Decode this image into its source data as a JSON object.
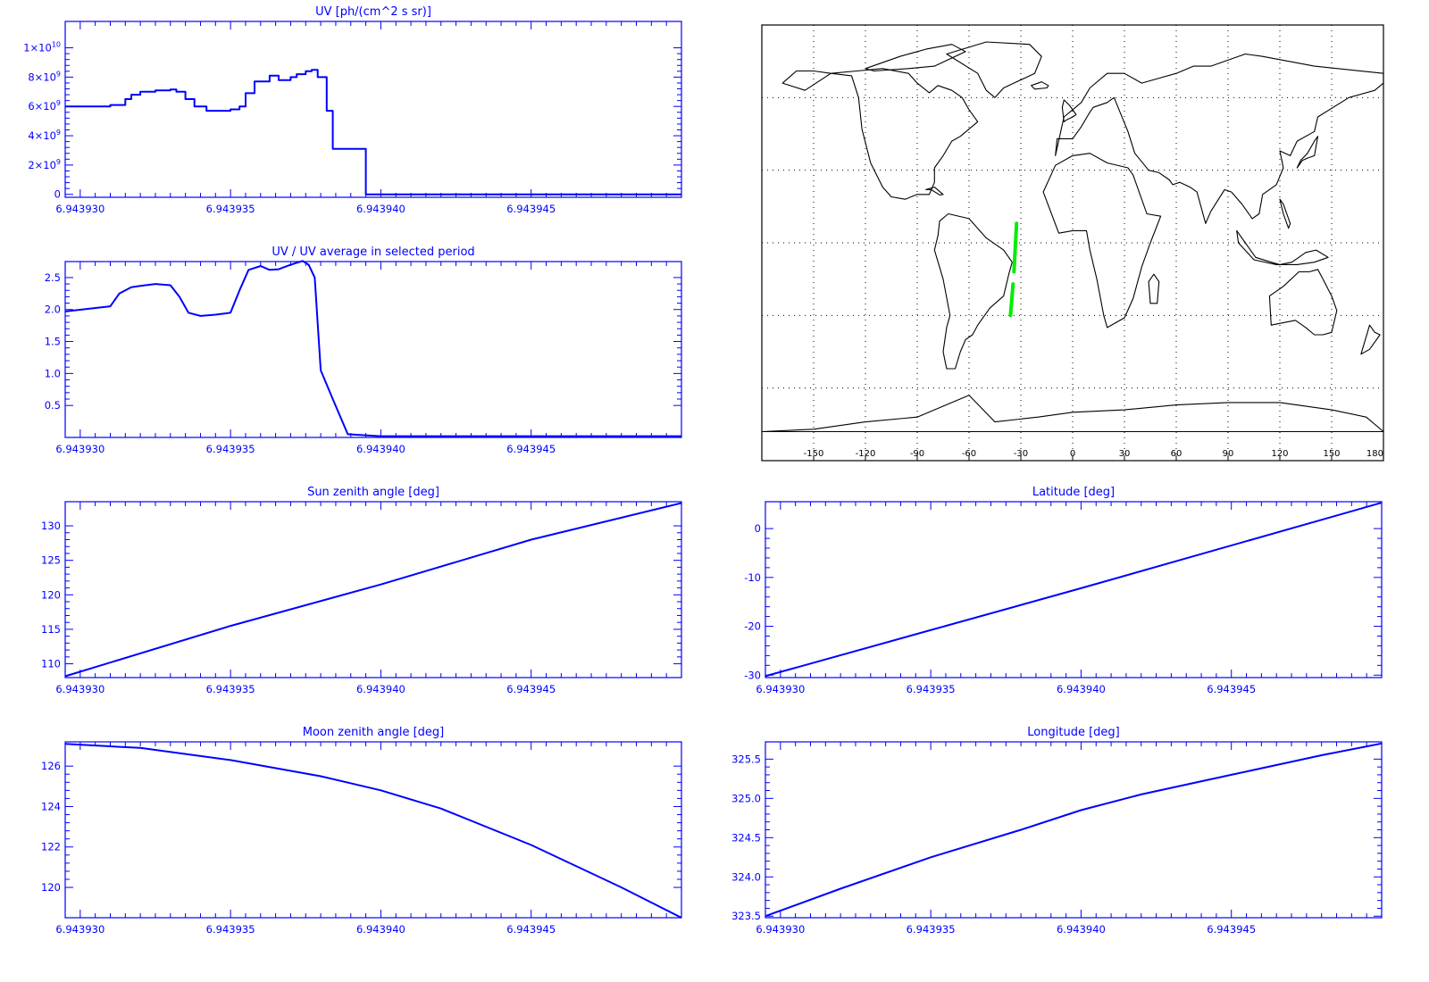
{
  "colors": {
    "plot": "#0000ff",
    "track": "#00ee00",
    "map_line": "#000000",
    "grid": "#000000"
  },
  "chart_data": [
    {
      "id": "uv",
      "type": "line",
      "step": true,
      "title": "UV [ph/(cm^2 s sr)]",
      "xlim": [
        6.9439295,
        6.94395
      ],
      "ylim": [
        -200000000.0,
        11800000000.0
      ],
      "x_ticks": [
        6.94393,
        6.943935,
        6.94394,
        6.943945
      ],
      "x_tick_labels": [
        "6.943930",
        "6.943935",
        "6.943940",
        "6.943945"
      ],
      "y_ticks": [
        0,
        2000000000.0,
        4000000000.0,
        6000000000.0,
        8000000000.0,
        10000000000.0
      ],
      "y_tick_labels": [
        {
          "base": "0",
          "exp": ""
        },
        {
          "base": "2×10",
          "exp": "9"
        },
        {
          "base": "4×10",
          "exp": "9"
        },
        {
          "base": "6×10",
          "exp": "9"
        },
        {
          "base": "8×10",
          "exp": "9"
        },
        {
          "base": "1×10",
          "exp": "10"
        }
      ],
      "series": [
        {
          "x": [
            6.9439295,
            6.943931,
            6.9439315,
            6.9439317,
            6.943932,
            6.9439325,
            6.943933,
            6.9439332,
            6.9439335,
            6.9439338,
            6.9439342,
            6.9439346,
            6.943935,
            6.9439353,
            6.9439355,
            6.9439358,
            6.9439363,
            6.9439366,
            6.943937,
            6.9439372,
            6.9439375,
            6.9439377,
            6.9439379,
            6.9439382,
            6.9439384,
            6.9439385,
            6.9439395,
            6.943941,
            6.9439445,
            6.94395
          ],
          "y": [
            6000000000.0,
            6100000000.0,
            6500000000.0,
            6800000000.0,
            7000000000.0,
            7100000000.0,
            7150000000.0,
            7000000000.0,
            6500000000.0,
            6000000000.0,
            5700000000.0,
            5700000000.0,
            5800000000.0,
            6000000000.0,
            6900000000.0,
            7700000000.0,
            8100000000.0,
            7800000000.0,
            8000000000.0,
            8200000000.0,
            8400000000.0,
            8500000000.0,
            8000000000.0,
            5700000000.0,
            3100000000.0,
            3100000000.0,
            0,
            0,
            0,
            0
          ]
        }
      ]
    },
    {
      "id": "uv-ratio",
      "type": "line",
      "title": "UV / UV average in selected period",
      "xlim": [
        6.9439295,
        6.94395
      ],
      "ylim": [
        0,
        2.75
      ],
      "x_ticks": [
        6.94393,
        6.943935,
        6.94394,
        6.943945
      ],
      "x_tick_labels": [
        "6.943930",
        "6.943935",
        "6.943940",
        "6.943945"
      ],
      "y_ticks": [
        0.5,
        1.0,
        1.5,
        2.0,
        2.5
      ],
      "y_tick_labels": [
        "0.5",
        "1.0",
        "1.5",
        "2.0",
        "2.5"
      ],
      "series": [
        {
          "x": [
            6.9439295,
            6.943931,
            6.9439313,
            6.9439317,
            6.943932,
            6.9439325,
            6.943933,
            6.9439333,
            6.9439336,
            6.943934,
            6.9439345,
            6.943935,
            6.9439353,
            6.9439356,
            6.943936,
            6.9439363,
            6.9439366,
            6.943937,
            6.9439374,
            6.9439376,
            6.9439378,
            6.943938,
            6.9439384,
            6.9439389,
            6.94394,
            6.94395
          ],
          "y": [
            1.97,
            2.05,
            2.25,
            2.35,
            2.37,
            2.4,
            2.38,
            2.2,
            1.95,
            1.9,
            1.92,
            1.95,
            2.3,
            2.62,
            2.68,
            2.62,
            2.63,
            2.7,
            2.76,
            2.7,
            2.5,
            1.05,
            0.6,
            0.05,
            0.02,
            0.02
          ]
        }
      ]
    },
    {
      "id": "sun-zenith",
      "type": "line",
      "title": "Sun zenith angle [deg]",
      "xlim": [
        6.9439295,
        6.94395
      ],
      "ylim": [
        108,
        133.5
      ],
      "x_ticks": [
        6.94393,
        6.943935,
        6.94394,
        6.943945
      ],
      "x_tick_labels": [
        "6.943930",
        "6.943935",
        "6.943940",
        "6.943945"
      ],
      "y_ticks": [
        110,
        115,
        120,
        125,
        130
      ],
      "y_tick_labels": [
        "110",
        "115",
        "120",
        "125",
        "130"
      ],
      "series": [
        {
          "x": [
            6.9439295,
            6.943935,
            6.94394,
            6.943945,
            6.94395
          ],
          "y": [
            108.2,
            115.5,
            121.5,
            128.0,
            133.3
          ]
        }
      ]
    },
    {
      "id": "latitude",
      "type": "line",
      "title": "Latitude [deg]",
      "xlim": [
        6.9439295,
        6.94395
      ],
      "ylim": [
        -30.5,
        5.5
      ],
      "x_ticks": [
        6.94393,
        6.943935,
        6.94394,
        6.943945
      ],
      "x_tick_labels": [
        "6.943930",
        "6.943935",
        "6.943940",
        "6.943945"
      ],
      "y_ticks": [
        -30,
        -20,
        -10,
        0
      ],
      "y_tick_labels": [
        "-30",
        "-20",
        "-10",
        "0"
      ],
      "series": [
        {
          "x": [
            6.9439295,
            6.94394,
            6.94395
          ],
          "y": [
            -30.2,
            -12.2,
            5.3
          ]
        }
      ]
    },
    {
      "id": "moon-zenith",
      "type": "line",
      "title": "Moon zenith angle [deg]",
      "xlim": [
        6.9439295,
        6.94395
      ],
      "ylim": [
        118.5,
        127.2
      ],
      "x_ticks": [
        6.94393,
        6.943935,
        6.94394,
        6.943945
      ],
      "x_tick_labels": [
        "6.943930",
        "6.943935",
        "6.943940",
        "6.943945"
      ],
      "y_ticks": [
        120,
        122,
        124,
        126
      ],
      "y_tick_labels": [
        "120",
        "122",
        "124",
        "126"
      ],
      "series": [
        {
          "x": [
            6.9439295,
            6.943932,
            6.943935,
            6.943938,
            6.94394,
            6.943942,
            6.943945,
            6.943948,
            6.94395
          ],
          "y": [
            127.1,
            126.9,
            126.3,
            125.5,
            124.8,
            123.9,
            122.1,
            120.0,
            118.5
          ]
        }
      ]
    },
    {
      "id": "longitude",
      "type": "line",
      "title": "Longitude [deg]",
      "xlim": [
        6.9439295,
        6.94395
      ],
      "ylim": [
        323.48,
        325.72
      ],
      "x_ticks": [
        6.94393,
        6.943935,
        6.94394,
        6.943945
      ],
      "x_tick_labels": [
        "6.943930",
        "6.943935",
        "6.943940",
        "6.943945"
      ],
      "y_ticks": [
        323.5,
        324.0,
        324.5,
        325.0,
        325.5
      ],
      "y_tick_labels": [
        "323.5",
        "324.0",
        "324.5",
        "325.0",
        "325.5"
      ],
      "series": [
        {
          "x": [
            6.9439295,
            6.943932,
            6.943935,
            6.943938,
            6.94394,
            6.943942,
            6.943945,
            6.943948,
            6.94395
          ],
          "y": [
            323.5,
            323.85,
            324.25,
            324.6,
            324.85,
            325.05,
            325.3,
            325.55,
            325.7
          ]
        }
      ]
    }
  ],
  "map": {
    "lon_ticks": [
      -150,
      -120,
      -90,
      -60,
      -30,
      0,
      30,
      60,
      90,
      120,
      150,
      180
    ],
    "lon_tick_labels": [
      "-150",
      "-120",
      "-90",
      "-60",
      "-30",
      "0",
      "30",
      "60",
      "90",
      "120",
      "150",
      "180"
    ],
    "grid_lon": [
      -150,
      -120,
      -90,
      -60,
      -30,
      0,
      30,
      60,
      90,
      120,
      150
    ],
    "grid_lat": [
      -60,
      -30,
      0,
      30,
      60
    ],
    "lon_range": [
      -180,
      180
    ],
    "lat_range": [
      -90,
      90
    ],
    "track": [
      {
        "lon": [
          -32.5,
          -34.0
        ],
        "lat": [
          8.0,
          -12.0
        ]
      },
      {
        "lon": [
          -34.5,
          -36.0
        ],
        "lat": [
          -17.0,
          -30.0
        ]
      }
    ],
    "continents": [
      {
        "name": "north-america",
        "lon": [
          -168,
          -160,
          -150,
          -140,
          -128,
          -124,
          -122,
          -117,
          -110,
          -105,
          -97,
          -90,
          -83,
          -80,
          -80,
          -75,
          -70,
          -65,
          -60,
          -55,
          -60,
          -64,
          -70,
          -78,
          -83,
          -90,
          -95,
          -110,
          -125,
          -140,
          -155,
          -168
        ],
        "lat": [
          66,
          71,
          71,
          70,
          69,
          60,
          47,
          33,
          23,
          19,
          18,
          20,
          20,
          25,
          31,
          36,
          42,
          44,
          47,
          50,
          55,
          60,
          63,
          65,
          62,
          66,
          70,
          72,
          71,
          70,
          63,
          66
        ]
      },
      {
        "name": "greenland",
        "lon": [
          -73,
          -50,
          -25,
          -18,
          -22,
          -40,
          -45,
          -50,
          -55,
          -73
        ],
        "lat": [
          78,
          83,
          82,
          77,
          70,
          64,
          60,
          63,
          70,
          78
        ]
      },
      {
        "name": "south-america",
        "lon": [
          -77,
          -72,
          -60,
          -50,
          -40,
          -35,
          -37,
          -40,
          -48,
          -55,
          -58,
          -62,
          -65,
          -68,
          -73,
          -75,
          -73,
          -71,
          -75,
          -80,
          -78,
          -77
        ],
        "lat": [
          9,
          12,
          10,
          2,
          -3,
          -8,
          -13,
          -22,
          -27,
          -34,
          -38,
          -40,
          -45,
          -52,
          -52,
          -45,
          -35,
          -30,
          -15,
          -3,
          3,
          9
        ]
      },
      {
        "name": "africa",
        "lon": [
          -17,
          -10,
          0,
          10,
          20,
          32,
          35,
          43,
          51,
          45,
          40,
          35,
          30,
          20,
          18,
          14,
          10,
          8,
          0,
          -8,
          -17
        ],
        "lat": [
          21,
          32,
          36,
          37,
          33,
          31,
          28,
          12,
          11,
          0,
          -10,
          -23,
          -31,
          -35,
          -30,
          -15,
          -3,
          5,
          5,
          4,
          21
        ]
      },
      {
        "name": "eurasia",
        "lon": [
          -10,
          -9,
          0,
          5,
          10,
          12,
          20,
          24,
          32,
          36,
          44,
          50,
          56,
          58,
          62,
          68,
          72,
          77,
          80,
          88,
          92,
          98,
          104,
          108,
          110,
          118,
          122,
          120,
          126,
          130,
          140,
          142,
          160,
          175,
          180,
          180,
          140,
          110,
          100,
          80,
          70,
          60,
          50,
          40,
          30,
          20,
          10,
          5,
          -5,
          -10
        ],
        "lat": [
          36,
          43,
          43,
          48,
          54,
          56,
          58,
          60,
          46,
          37,
          30,
          29,
          26,
          24,
          25,
          23,
          21,
          8,
          13,
          22,
          21,
          16,
          10,
          12,
          20,
          24,
          31,
          38,
          36,
          42,
          46,
          52,
          60,
          63,
          66,
          70,
          73,
          77,
          78,
          73,
          73,
          70,
          68,
          66,
          70,
          70,
          64,
          58,
          52,
          36
        ]
      },
      {
        "name": "australia",
        "lon": [
          114,
          122,
          131,
          137,
          142,
          145,
          150,
          153,
          150,
          145,
          140,
          135,
          129,
          115,
          114
        ],
        "lat": [
          -22,
          -18,
          -12,
          -12,
          -11,
          -15,
          -22,
          -28,
          -37,
          -38,
          -38,
          -35,
          -32,
          -34,
          -22
        ]
      },
      {
        "name": "antarctica",
        "lon": [
          -180,
          -150,
          -120,
          -90,
          -70,
          -60,
          -45,
          -20,
          0,
          30,
          60,
          90,
          120,
          150,
          170,
          180
        ],
        "lat": [
          -78,
          -77,
          -74,
          -72,
          -66,
          -63,
          -74,
          -72,
          -70,
          -69,
          -67,
          -66,
          -66,
          -69,
          -72,
          -78
        ]
      },
      {
        "name": "indonesia",
        "lon": [
          95,
          100,
          106,
          115,
          120,
          127,
          135,
          141,
          148,
          140,
          130,
          118,
          105,
          96,
          95
        ],
        "lat": [
          5,
          0,
          -6,
          -8,
          -9,
          -8,
          -4,
          -3,
          -6,
          -8,
          -9,
          -9,
          -7,
          0,
          5
        ]
      },
      {
        "name": "japan",
        "lon": [
          130,
          133,
          136,
          140,
          141,
          142,
          140,
          136,
          132,
          130
        ],
        "lat": [
          31,
          34,
          35,
          36,
          40,
          44,
          42,
          37,
          34,
          31
        ]
      },
      {
        "name": "madagascar",
        "lon": [
          44,
          47,
          50,
          49,
          45,
          44
        ],
        "lat": [
          -16,
          -13,
          -16,
          -25,
          -25,
          -16
        ]
      },
      {
        "name": "new-zealand",
        "lon": [
          172,
          175,
          178,
          175,
          172,
          167,
          172
        ],
        "lat": [
          -34,
          -37,
          -38,
          -41,
          -44,
          -46,
          -34
        ]
      },
      {
        "name": "britain",
        "lon": [
          -5,
          -3,
          0,
          2,
          -2,
          -5,
          -6,
          -5
        ],
        "lat": [
          50,
          51,
          52,
          53,
          57,
          59,
          56,
          50
        ]
      },
      {
        "name": "iceland",
        "lon": [
          -24,
          -18,
          -14,
          -15,
          -22,
          -24
        ],
        "lat": [
          65,
          66.5,
          65,
          64,
          63.5,
          65
        ]
      },
      {
        "name": "canadian-arctic",
        "lon": [
          -120,
          -100,
          -85,
          -70,
          -62,
          -80,
          -95,
          -115,
          -120
        ],
        "lat": [
          72,
          77,
          80,
          82,
          79,
          73,
          72,
          71,
          72
        ]
      },
      {
        "name": "philippines",
        "lon": [
          120,
          122,
          126,
          125,
          122,
          120
        ],
        "lat": [
          18,
          16,
          8,
          6,
          12,
          18
        ]
      },
      {
        "name": "cuba",
        "lon": [
          -85,
          -80,
          -75,
          -77,
          -82,
          -85
        ],
        "lat": [
          22,
          23,
          20,
          19.8,
          22,
          22
        ]
      }
    ]
  }
}
